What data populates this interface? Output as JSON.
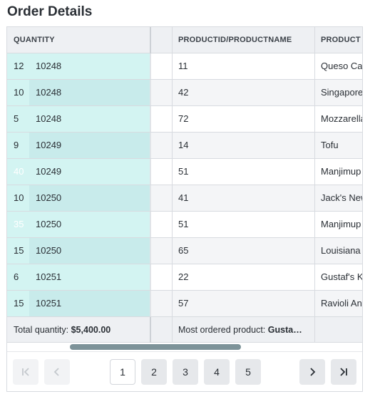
{
  "page": {
    "title": "Order Details"
  },
  "columns": {
    "quantity": "QUANTITY",
    "productid_productname": "PRODUCTID/PRODUCTNAME",
    "product": "PRODUCT"
  },
  "rows": [
    {
      "quantity": "12",
      "order_id": "10248",
      "product_id": "11",
      "product_name": "Queso Cab"
    },
    {
      "quantity": "10",
      "order_id": "10248",
      "product_id": "42",
      "product_name": "Singapore"
    },
    {
      "quantity": "5",
      "order_id": "10248",
      "product_id": "72",
      "product_name": "Mozzarella"
    },
    {
      "quantity": "9",
      "order_id": "10249",
      "product_id": "14",
      "product_name": "Tofu"
    },
    {
      "quantity": "40",
      "order_id": "10249",
      "product_id": "51",
      "product_name": "Manjimup"
    },
    {
      "quantity": "10",
      "order_id": "10250",
      "product_id": "41",
      "product_name": "Jack's New"
    },
    {
      "quantity": "35",
      "order_id": "10250",
      "product_id": "51",
      "product_name": "Manjimup"
    },
    {
      "quantity": "15",
      "order_id": "10250",
      "product_id": "65",
      "product_name": "Louisiana"
    },
    {
      "quantity": "6",
      "order_id": "10251",
      "product_id": "22",
      "product_name": "Gustaf's K"
    },
    {
      "quantity": "15",
      "order_id": "10251",
      "product_id": "57",
      "product_name": "Ravioli Ang"
    }
  ],
  "footer": {
    "total_label": "Total quantity: ",
    "total_value": "$5,400.00",
    "most_ordered_label": "Most ordered product: ",
    "most_ordered_value": "Gusta…"
  },
  "pager": {
    "pages": [
      "1",
      "2",
      "3",
      "4",
      "5"
    ],
    "current_page": "1"
  },
  "colors": {
    "row_teal": "#d3f4f2",
    "row_teal_dark": "#c8ebeb",
    "row_white": "#ffffff",
    "row_gray": "#f4f5f7",
    "scroll_thumb": "#7d9399"
  }
}
